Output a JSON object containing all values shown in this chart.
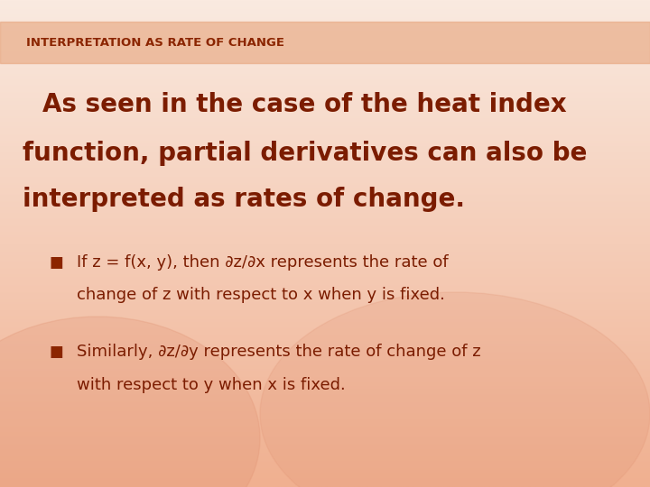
{
  "title": "INTERPRETATION AS RATE OF CHANGE",
  "title_color": "#8B2500",
  "title_fontsize": 9.5,
  "bg_top_color": "#FAEAE0",
  "bg_bottom_color": "#F0B090",
  "header_bar_color": "#E8A882",
  "header_bar_alpha": 0.65,
  "main_text_line1": "As seen in the case of the heat index",
  "main_text_line2": "function, partial derivatives can also be",
  "main_text_line3": "interpreted as rates of change.",
  "main_text_color": "#7B1C00",
  "main_fontsize": 20,
  "bullet1_line1": "If z = f(x, y), then ∂z/∂x represents the rate of",
  "bullet1_line2": "change of z with respect to x when y is fixed.",
  "bullet2_line1": "Similarly, ∂z/∂y represents the rate of change of z",
  "bullet2_line2": "with respect to y when x is fixed.",
  "bullet_fontsize": 13,
  "bullet_color": "#7B1C00",
  "bullet_square_color": "#8B2500"
}
